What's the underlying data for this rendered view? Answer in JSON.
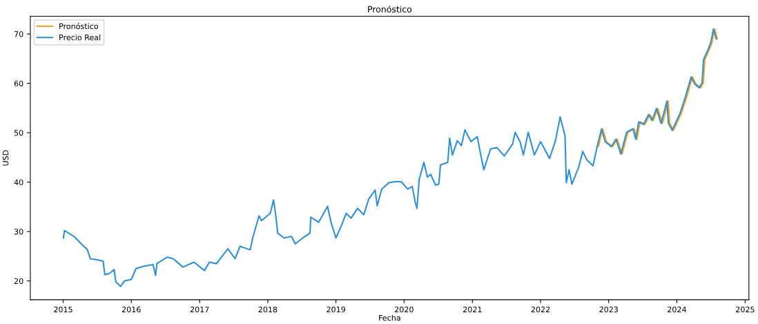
{
  "chart_data": {
    "type": "line",
    "title": "Pronóstico",
    "xlabel": "Fecha",
    "ylabel": "USD",
    "xlim": [
      "2014-07-09",
      "2025-01-21"
    ],
    "ylim": [
      16.2,
      73.6
    ],
    "xticks": [
      {
        "value": "2015-01-01",
        "label": "2015"
      },
      {
        "value": "2016-01-01",
        "label": "2016"
      },
      {
        "value": "2017-01-01",
        "label": "2017"
      },
      {
        "value": "2018-01-01",
        "label": "2018"
      },
      {
        "value": "2019-01-01",
        "label": "2019"
      },
      {
        "value": "2020-01-01",
        "label": "2020"
      },
      {
        "value": "2021-01-01",
        "label": "2021"
      },
      {
        "value": "2022-01-01",
        "label": "2022"
      },
      {
        "value": "2023-01-01",
        "label": "2023"
      },
      {
        "value": "2024-01-01",
        "label": "2024"
      },
      {
        "value": "2025-01-01",
        "label": "2025"
      }
    ],
    "yticks": [
      20,
      30,
      40,
      50,
      60,
      70
    ],
    "grid": false,
    "legend": "top left",
    "marker": "none",
    "line_style": "solid",
    "series": [
      {
        "name": "Pronóstico",
        "color": "#f5a623",
        "x": [
          "2022-11-07",
          "2022-11-30",
          "2022-12-20",
          "2023-01-22",
          "2023-02-16",
          "2023-03-14",
          "2023-04-14",
          "2023-05-18",
          "2023-06-01",
          "2023-06-18",
          "2023-07-14",
          "2023-08-10",
          "2023-08-28",
          "2023-09-21",
          "2023-10-16",
          "2023-11-16",
          "2023-11-24",
          "2023-12-14",
          "2024-01-25",
          "2024-02-20",
          "2024-03-25",
          "2024-04-12",
          "2024-05-07",
          "2024-05-22",
          "2024-05-30",
          "2024-06-25",
          "2024-07-08",
          "2024-07-22",
          "2024-08-05"
        ],
        "values": [
          47.2,
          50.8,
          48.2,
          47.2,
          48.7,
          45.7,
          50.1,
          50.8,
          48.7,
          52.2,
          51.7,
          53.7,
          52.5,
          54.9,
          51.9,
          56.4,
          51.9,
          50.5,
          53.9,
          56.9,
          61.3,
          59.9,
          59.1,
          60.1,
          64.8,
          67.0,
          68.3,
          71.0,
          69.0
        ]
      },
      {
        "name": "Precio Real",
        "color": "#2e8fd8",
        "x": [
          "2015-01-02",
          "2015-01-08",
          "2015-02-28",
          "2015-04-08",
          "2015-05-10",
          "2015-05-26",
          "2015-07-01",
          "2015-08-03",
          "2015-08-12",
          "2015-09-05",
          "2015-10-01",
          "2015-10-10",
          "2015-11-05",
          "2015-11-25",
          "2016-01-01",
          "2016-01-26",
          "2016-03-10",
          "2016-04-26",
          "2016-05-10",
          "2016-05-17",
          "2016-07-10",
          "2016-08-12",
          "2016-10-03",
          "2016-12-02",
          "2017-01-27",
          "2017-02-22",
          "2017-04-01",
          "2017-06-01",
          "2017-07-10",
          "2017-08-05",
          "2017-09-29",
          "2017-10-12",
          "2017-11-15",
          "2017-11-28",
          "2018-01-14",
          "2018-02-01",
          "2018-02-13",
          "2018-02-23",
          "2018-03-29",
          "2018-05-08",
          "2018-05-28",
          "2018-07-07",
          "2018-08-15",
          "2018-08-19",
          "2018-10-01",
          "2018-11-17",
          "2018-12-07",
          "2019-01-01",
          "2019-01-30",
          "2019-02-25",
          "2019-03-23",
          "2019-04-27",
          "2019-05-30",
          "2019-06-26",
          "2019-07-30",
          "2019-08-10",
          "2019-09-03",
          "2019-10-12",
          "2019-11-14",
          "2019-12-17",
          "2020-01-20",
          "2020-02-14",
          "2020-03-01",
          "2020-03-10",
          "2020-03-22",
          "2020-04-16",
          "2020-05-05",
          "2020-05-22",
          "2020-06-18",
          "2020-07-05",
          "2020-07-14",
          "2020-08-22",
          "2020-09-01",
          "2020-09-16",
          "2020-10-12",
          "2020-11-03",
          "2020-11-22",
          "2020-12-24",
          "2021-01-27",
          "2021-02-10",
          "2021-03-03",
          "2021-04-08",
          "2021-05-12",
          "2021-06-21",
          "2021-08-04",
          "2021-08-18",
          "2021-09-13",
          "2021-10-01",
          "2021-10-27",
          "2021-11-29",
          "2022-01-01",
          "2022-02-18",
          "2022-03-22",
          "2022-04-16",
          "2022-05-12",
          "2022-05-19",
          "2022-06-03",
          "2022-06-18",
          "2022-07-24",
          "2022-08-15",
          "2022-09-06",
          "2022-10-09",
          "2022-10-31",
          "2022-11-24",
          "2022-12-13",
          "2023-01-15",
          "2023-02-09",
          "2023-03-07",
          "2023-04-07",
          "2023-05-11",
          "2023-05-26",
          "2023-06-11",
          "2023-07-07",
          "2023-08-03",
          "2023-08-21",
          "2023-09-14",
          "2023-10-09",
          "2023-11-09",
          "2023-11-17",
          "2023-12-07",
          "2024-01-18",
          "2024-02-13",
          "2024-03-18",
          "2024-04-05",
          "2024-04-30",
          "2024-05-15",
          "2024-05-23",
          "2024-06-18",
          "2024-07-01",
          "2024-07-15",
          "2024-07-30"
        ],
        "values": [
          28.7,
          30.2,
          29.0,
          27.5,
          26.4,
          24.5,
          24.3,
          24.0,
          21.3,
          21.5,
          22.3,
          19.8,
          18.9,
          20.0,
          20.3,
          22.5,
          23.0,
          23.3,
          21.1,
          23.5,
          24.8,
          24.5,
          22.8,
          23.8,
          22.1,
          23.8,
          23.5,
          26.5,
          24.5,
          27.0,
          26.3,
          28.7,
          33.2,
          32.2,
          33.7,
          36.4,
          33.2,
          29.7,
          28.7,
          29.0,
          27.5,
          28.7,
          29.7,
          32.9,
          31.9,
          35.1,
          31.7,
          28.7,
          31.2,
          33.7,
          32.7,
          34.7,
          33.4,
          36.6,
          38.4,
          35.2,
          38.6,
          39.9,
          40.1,
          40.1,
          38.6,
          39.1,
          35.9,
          34.7,
          40.6,
          44.0,
          41.0,
          41.6,
          39.4,
          39.6,
          43.5,
          44.0,
          48.9,
          45.5,
          48.4,
          47.4,
          50.6,
          48.2,
          49.2,
          46.4,
          42.5,
          46.7,
          47.0,
          45.3,
          47.7,
          50.1,
          48.2,
          45.5,
          50.1,
          45.5,
          48.2,
          44.8,
          48.4,
          53.2,
          49.4,
          39.9,
          42.5,
          39.6,
          43.0,
          46.2,
          44.5,
          43.3,
          47.2,
          50.8,
          48.2,
          47.2,
          48.7,
          45.7,
          50.1,
          50.8,
          48.7,
          52.2,
          51.7,
          53.7,
          52.5,
          54.9,
          51.9,
          56.4,
          51.9,
          50.5,
          53.9,
          56.9,
          61.3,
          59.9,
          59.1,
          60.1,
          64.8,
          67.0,
          68.3,
          71.0,
          69.0
        ]
      }
    ]
  }
}
